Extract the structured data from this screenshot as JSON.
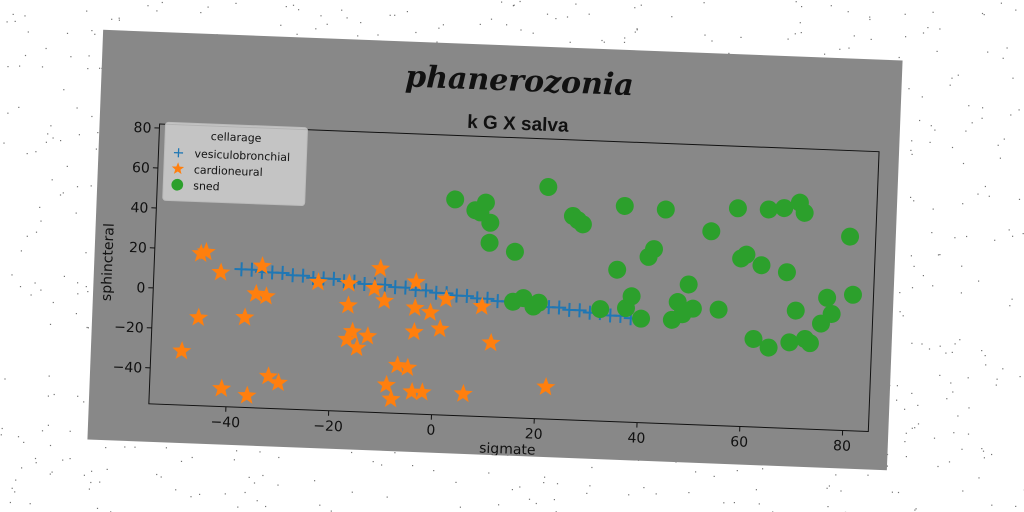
{
  "chart_data": {
    "type": "scatter",
    "suptitle": "phanerozonia",
    "title": "k G X salva",
    "xlabel": "sigmate",
    "ylabel": "sphincteral",
    "xlim": [
      -55,
      85
    ],
    "ylim": [
      -58,
      82
    ],
    "xticks": [
      -40,
      -20,
      0,
      20,
      40,
      60,
      80
    ],
    "xtick_labels": [
      "−40",
      "−20",
      "0",
      "20",
      "40",
      "60",
      "80"
    ],
    "yticks": [
      -40,
      -20,
      0,
      20,
      40,
      60,
      80
    ],
    "ytick_labels": [
      "−40",
      "−20",
      "0",
      "20",
      "40",
      "60",
      "80"
    ],
    "grid": false,
    "legend": {
      "title": "cellarage",
      "placement": "top-left"
    },
    "series": [
      {
        "name": "vesiculobronchial",
        "marker": "plus",
        "color": "#1f77b4",
        "x": [
          -38,
          -36,
          -34,
          -32,
          -30,
          -28,
          -26,
          -24,
          -22,
          -20,
          -18,
          -16,
          -14,
          -12,
          -10,
          -8,
          -6,
          -4,
          -2,
          0,
          2,
          4,
          6,
          8,
          10,
          12,
          14,
          16,
          18,
          20,
          22,
          24,
          26,
          28,
          30,
          32,
          34,
          36,
          38,
          40
        ],
        "y": [
          11,
          11,
          10,
          10,
          10,
          9,
          9,
          8,
          8,
          8,
          7,
          7,
          6,
          6,
          6,
          5,
          5,
          4,
          4,
          3,
          3,
          2,
          2,
          1,
          1,
          0,
          0,
          0,
          -1,
          -1,
          -2,
          -2,
          -3,
          -3,
          -4,
          -4,
          -5,
          -5,
          -6,
          -6
        ]
      },
      {
        "name": "cardioneural",
        "marker": "star",
        "color": "#ff7f0e",
        "x": [
          -46,
          -45,
          -42,
          -35,
          -34,
          -33,
          -32,
          -37,
          -30,
          -41,
          -36,
          -46,
          -49,
          -23,
          -17,
          -17,
          -17,
          -16,
          -15,
          -13,
          -12,
          -11,
          -10,
          -9,
          -8,
          -7,
          -5,
          -4,
          -4,
          -4,
          -4,
          -2,
          -1,
          1,
          2,
          9,
          11,
          6,
          22
        ],
        "y": [
          18,
          19,
          9,
          -1,
          13,
          -2,
          -42,
          -13,
          -45,
          -49,
          -52,
          -14,
          -31,
          6,
          6,
          -5,
          -22,
          -18,
          -26,
          -20,
          4,
          14,
          -2,
          -44,
          -51,
          -34,
          -35,
          -47,
          8,
          -5,
          -17,
          -47,
          -7,
          -15,
          0,
          -3,
          -21,
          -47,
          -42
        ]
      },
      {
        "name": "sned",
        "marker": "circle",
        "color": "#2ca02c",
        "x": [
          3,
          7,
          8,
          9,
          10,
          10,
          15,
          15,
          17,
          19,
          20,
          21,
          26,
          27,
          28,
          32,
          35,
          36,
          37,
          38,
          40,
          41,
          42,
          44,
          46,
          47,
          48,
          49,
          50,
          53,
          55,
          58,
          59,
          60,
          62,
          63,
          64,
          65,
          67,
          68,
          69,
          70,
          70,
          71,
          72,
          73,
          75,
          76,
          77,
          80,
          81
        ],
        "y": [
          50,
          45,
          44,
          49,
          39,
          29,
          0,
          25,
          2,
          -2,
          0,
          58,
          44,
          42,
          40,
          -2,
          18,
          50,
          -1,
          5,
          -6,
          25,
          29,
          49,
          -6,
          3,
          -3,
          12,
          0,
          39,
          0,
          51,
          26,
          28,
          -14,
          23,
          51,
          -18,
          52,
          20,
          -15,
          1,
          55,
          50,
          -13,
          -15,
          -5,
          8,
          0,
          39,
          10
        ]
      }
    ]
  }
}
